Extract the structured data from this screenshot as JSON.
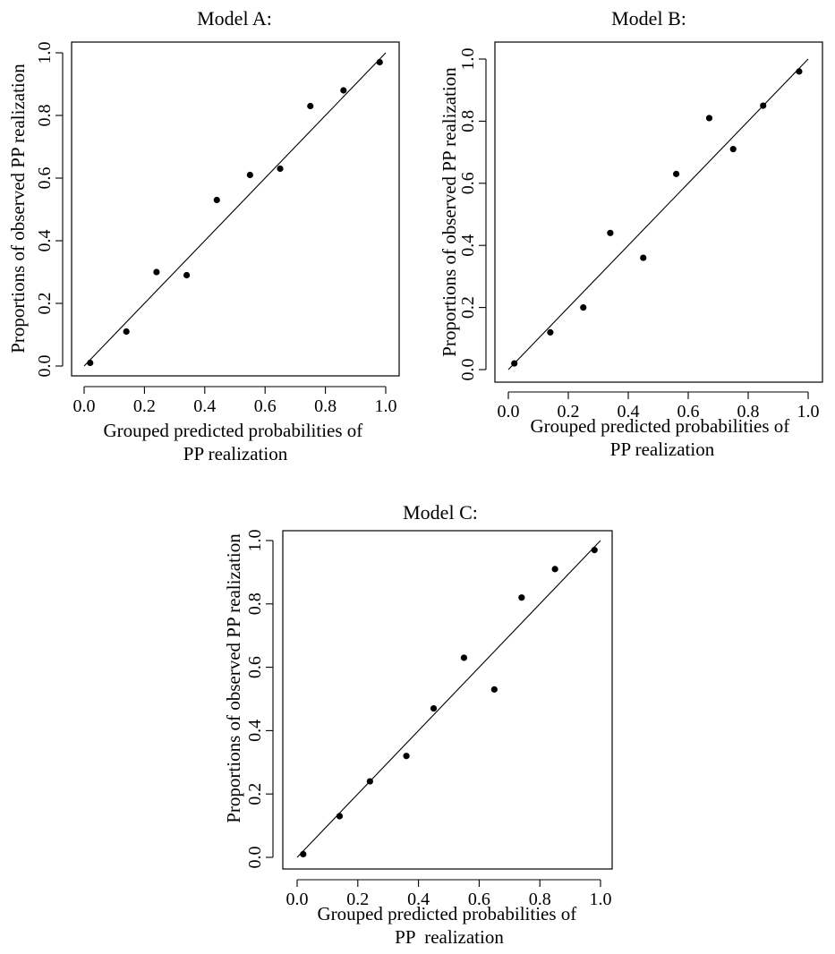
{
  "chart_data": [
    {
      "type": "scatter",
      "title": "Model A:",
      "xlabel": [
        "Grouped predicted probabilities of",
        "PP realization"
      ],
      "ylabel": "Proportions of observed PP realization",
      "xlim": [
        0,
        1
      ],
      "ylim": [
        0,
        1
      ],
      "xticks": [
        "0.0",
        "0.2",
        "0.4",
        "0.6",
        "0.8",
        "1.0"
      ],
      "yticks": [
        "0.0",
        "0.2",
        "0.4",
        "0.6",
        "0.8",
        "1.0"
      ],
      "reference_line": [
        [
          0,
          0
        ],
        [
          1,
          1
        ]
      ],
      "grid": false,
      "x": [
        0.02,
        0.14,
        0.24,
        0.34,
        0.44,
        0.55,
        0.65,
        0.75,
        0.86,
        0.98
      ],
      "y": [
        0.01,
        0.11,
        0.3,
        0.29,
        0.53,
        0.61,
        0.63,
        0.83,
        0.88,
        0.97
      ]
    },
    {
      "type": "scatter",
      "title": "Model B:",
      "xlabel": [
        "Grouped predicted probabilities of",
        "PP realization"
      ],
      "ylabel": "Proportions of observed PP realization",
      "xlim": [
        0,
        1
      ],
      "ylim": [
        0,
        1
      ],
      "xticks": [
        "0.0",
        "0.2",
        "0.4",
        "0.6",
        "0.8",
        "1.0"
      ],
      "yticks": [
        "0.0",
        "0.2",
        "0.4",
        "0.6",
        "0.8",
        "1.0"
      ],
      "reference_line": [
        [
          0,
          0
        ],
        [
          1,
          1
        ]
      ],
      "grid": false,
      "x": [
        0.02,
        0.14,
        0.25,
        0.34,
        0.45,
        0.56,
        0.67,
        0.75,
        0.85,
        0.97
      ],
      "y": [
        0.02,
        0.12,
        0.2,
        0.44,
        0.36,
        0.63,
        0.81,
        0.71,
        0.85,
        0.96
      ]
    },
    {
      "type": "scatter",
      "title": "Model C:",
      "xlabel": [
        "Grouped predicted probabilities of",
        "PP  realization"
      ],
      "ylabel": "Proportions of observed PP realization",
      "xlim": [
        0,
        1
      ],
      "ylim": [
        0,
        1
      ],
      "xticks": [
        "0.0",
        "0.2",
        "0.4",
        "0.6",
        "0.8",
        "1.0"
      ],
      "yticks": [
        "0.0",
        "0.2",
        "0.4",
        "0.6",
        "0.8",
        "1.0"
      ],
      "reference_line": [
        [
          0,
          0
        ],
        [
          1,
          1
        ]
      ],
      "grid": false,
      "x": [
        0.02,
        0.14,
        0.24,
        0.36,
        0.45,
        0.55,
        0.65,
        0.74,
        0.85,
        0.98
      ],
      "y": [
        0.01,
        0.13,
        0.24,
        0.32,
        0.47,
        0.63,
        0.53,
        0.82,
        0.91,
        0.97
      ]
    }
  ]
}
